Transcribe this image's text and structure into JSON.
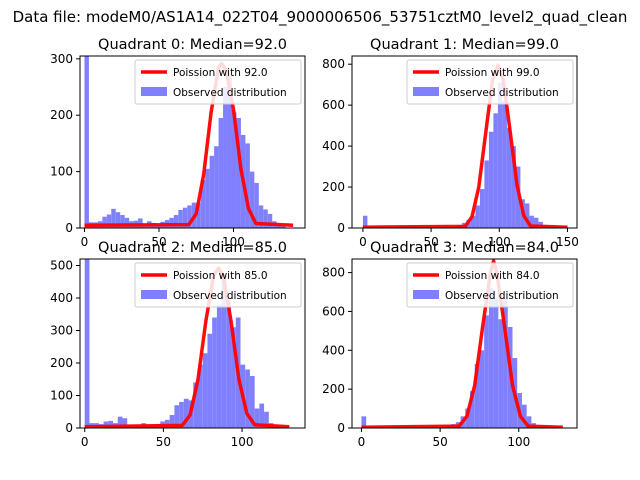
{
  "figure_title": "Data file: modeM0/AS1A14_022T04_9000006506_53751cztM0_level2_quad_clean",
  "colors": {
    "poisson": "#ff0000",
    "hist": "#8080ff",
    "axes": "#000000",
    "background": "#ffffff"
  },
  "chart_data": [
    {
      "type": "bar",
      "title": "Quadrant 0: Median=92.0",
      "xlim": [
        -3,
        148
      ],
      "ylim": [
        0,
        305
      ],
      "xticks": [
        0,
        50,
        100
      ],
      "yticks": [
        0,
        100,
        200,
        300
      ],
      "legend": {
        "placement": "top-right",
        "entries": [
          "Poission with 92.0",
          "Observed distribution"
        ]
      },
      "bin_width": 3,
      "bins": [
        [
          0,
          305
        ],
        [
          3,
          10
        ],
        [
          6,
          10
        ],
        [
          9,
          12
        ],
        [
          12,
          20
        ],
        [
          15,
          24
        ],
        [
          18,
          34
        ],
        [
          21,
          28
        ],
        [
          24,
          23
        ],
        [
          27,
          18
        ],
        [
          30,
          12
        ],
        [
          33,
          13
        ],
        [
          36,
          17
        ],
        [
          39,
          8
        ],
        [
          42,
          12
        ],
        [
          45,
          9
        ],
        [
          48,
          5
        ],
        [
          51,
          11
        ],
        [
          54,
          14
        ],
        [
          57,
          18
        ],
        [
          60,
          23
        ],
        [
          63,
          32
        ],
        [
          66,
          36
        ],
        [
          69,
          40
        ],
        [
          72,
          45
        ],
        [
          75,
          45
        ],
        [
          78,
          85
        ],
        [
          81,
          105
        ],
        [
          84,
          128
        ],
        [
          87,
          145
        ],
        [
          90,
          195
        ],
        [
          93,
          250
        ],
        [
          96,
          270
        ],
        [
          99,
          205
        ],
        [
          102,
          195
        ],
        [
          105,
          165
        ],
        [
          108,
          150
        ],
        [
          111,
          100
        ],
        [
          114,
          80
        ],
        [
          117,
          40
        ],
        [
          120,
          33
        ],
        [
          123,
          25
        ],
        [
          126,
          12
        ],
        [
          129,
          6
        ],
        [
          132,
          3
        ]
      ],
      "poisson": {
        "mean": 92.0,
        "peak": 292,
        "x": [
          0,
          70,
          75,
          80,
          85,
          90,
          92,
          95,
          100,
          105,
          110,
          115,
          140
        ],
        "y": [
          5,
          6,
          25,
          95,
          205,
          285,
          292,
          280,
          210,
          105,
          35,
          8,
          5
        ]
      }
    },
    {
      "type": "bar",
      "title": "Quadrant 1: Median=99.0",
      "xlim": [
        -8,
        157
      ],
      "ylim": [
        0,
        840
      ],
      "xticks": [
        0,
        50,
        100,
        150
      ],
      "yticks": [
        0,
        200,
        400,
        600,
        800
      ],
      "legend": {
        "placement": "top-right",
        "entries": [
          "Poission with 99.0",
          "Observed distribution"
        ]
      },
      "bin_width": 3.3,
      "bins": [
        [
          0,
          60
        ],
        [
          3.3,
          5
        ],
        [
          66,
          5
        ],
        [
          69.3,
          15
        ],
        [
          72.6,
          25
        ],
        [
          75.9,
          40
        ],
        [
          79.2,
          60
        ],
        [
          82.5,
          110
        ],
        [
          85.8,
          190
        ],
        [
          89.1,
          330
        ],
        [
          92.4,
          470
        ],
        [
          95.7,
          560
        ],
        [
          99,
          710
        ],
        [
          102.3,
          620
        ],
        [
          105.6,
          490
        ],
        [
          108.9,
          400
        ],
        [
          112.2,
          300
        ],
        [
          115.5,
          140
        ],
        [
          118.8,
          120
        ],
        [
          122.1,
          60
        ],
        [
          125.4,
          50
        ],
        [
          128.7,
          30
        ],
        [
          132,
          15
        ],
        [
          135.3,
          8
        ],
        [
          138.6,
          4
        ]
      ],
      "poisson": {
        "mean": 99.0,
        "peak": 795,
        "x": [
          0,
          75,
          80,
          85,
          90,
          95,
          99,
          103,
          108,
          113,
          118,
          123,
          150
        ],
        "y": [
          4,
          8,
          55,
          200,
          460,
          720,
          795,
          720,
          470,
          210,
          60,
          10,
          4
        ]
      }
    },
    {
      "type": "bar",
      "title": "Quadrant 2: Median=85.0",
      "xlim": [
        -3,
        140
      ],
      "ylim": [
        0,
        520
      ],
      "xticks": [
        0,
        50,
        100
      ],
      "yticks": [
        0,
        100,
        200,
        300,
        400,
        500
      ],
      "legend": {
        "placement": "top-right",
        "entries": [
          "Poission with 85.0",
          "Observed distribution"
        ]
      },
      "bin_width": 3,
      "bins": [
        [
          0,
          520
        ],
        [
          3,
          15
        ],
        [
          6,
          15
        ],
        [
          9,
          12
        ],
        [
          12,
          20
        ],
        [
          15,
          22
        ],
        [
          18,
          15
        ],
        [
          21,
          35
        ],
        [
          24,
          30
        ],
        [
          27,
          10
        ],
        [
          30,
          8
        ],
        [
          33,
          5
        ],
        [
          36,
          15
        ],
        [
          39,
          8
        ],
        [
          42,
          10
        ],
        [
          45,
          12
        ],
        [
          48,
          20
        ],
        [
          51,
          25
        ],
        [
          54,
          40
        ],
        [
          57,
          70
        ],
        [
          60,
          80
        ],
        [
          63,
          90
        ],
        [
          66,
          85
        ],
        [
          69,
          140
        ],
        [
          72,
          195
        ],
        [
          75,
          230
        ],
        [
          78,
          290
        ],
        [
          81,
          340
        ],
        [
          84,
          380
        ],
        [
          87,
          460
        ],
        [
          90,
          390
        ],
        [
          93,
          310
        ],
        [
          96,
          340
        ],
        [
          99,
          195
        ],
        [
          102,
          180
        ],
        [
          105,
          160
        ],
        [
          108,
          60
        ],
        [
          111,
          75
        ],
        [
          114,
          50
        ],
        [
          117,
          15
        ],
        [
          120,
          8
        ],
        [
          123,
          4
        ]
      ],
      "poisson": {
        "mean": 85.0,
        "peak": 492,
        "x": [
          0,
          62,
          67,
          72,
          77,
          82,
          85,
          88,
          93,
          98,
          103,
          108,
          130
        ],
        "y": [
          4,
          8,
          40,
          150,
          330,
          470,
          492,
          470,
          330,
          150,
          45,
          10,
          4
        ]
      }
    },
    {
      "type": "bar",
      "title": "Quadrant 3: Median=84.0",
      "xlim": [
        -6,
        137
      ],
      "ylim": [
        0,
        870
      ],
      "xticks": [
        0,
        50,
        100
      ],
      "yticks": [
        0,
        200,
        400,
        600,
        800
      ],
      "legend": {
        "placement": "top-right",
        "entries": [
          "Poission with 84.0",
          "Observed distribution"
        ]
      },
      "bin_width": 3,
      "bins": [
        [
          0,
          60
        ],
        [
          3,
          5
        ],
        [
          51,
          5
        ],
        [
          54,
          10
        ],
        [
          57,
          20
        ],
        [
          60,
          30
        ],
        [
          63,
          60
        ],
        [
          66,
          100
        ],
        [
          69,
          190
        ],
        [
          72,
          330
        ],
        [
          75,
          400
        ],
        [
          78,
          580
        ],
        [
          81,
          720
        ],
        [
          84,
          670
        ],
        [
          87,
          560
        ],
        [
          90,
          670
        ],
        [
          93,
          520
        ],
        [
          96,
          360
        ],
        [
          99,
          180
        ],
        [
          102,
          120
        ],
        [
          105,
          60
        ],
        [
          108,
          25
        ],
        [
          111,
          15
        ],
        [
          114,
          6
        ]
      ],
      "poisson": {
        "mean": 84.0,
        "peak": 860,
        "x": [
          0,
          62,
          67,
          72,
          77,
          82,
          84,
          86,
          91,
          96,
          101,
          106,
          128
        ],
        "y": [
          4,
          10,
          60,
          220,
          520,
          800,
          860,
          800,
          520,
          220,
          60,
          10,
          4
        ]
      }
    }
  ]
}
